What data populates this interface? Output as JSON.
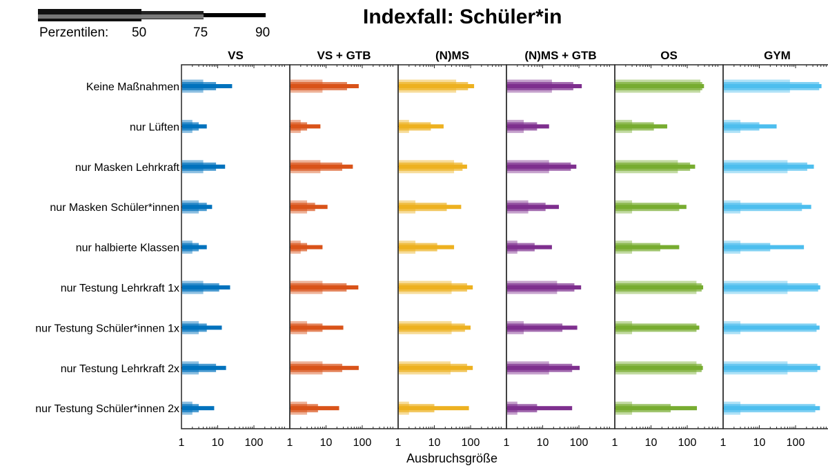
{
  "chart_data": {
    "type": "bar",
    "title": "Indexfall: Schüler*in",
    "xlabel": "Ausbruchsgröße",
    "xscale": "log",
    "xlim": [
      1,
      700
    ],
    "xticks": [
      1,
      10,
      100
    ],
    "xticklabels": [
      "1",
      "10",
      "100"
    ],
    "grid": false,
    "legend": {
      "placement": "top-left",
      "label": "Perzentilen:",
      "percentiles": [
        "50",
        "75",
        "90"
      ]
    },
    "categories": [
      "Keine Maßnahmen",
      "nur Lüften",
      "nur Masken Lehrkraft",
      "nur Masken Schüler*innen",
      "nur halbierte Klassen",
      "nur Testung Lehrkraft 1x",
      "nur Testung Schüler*innen 1x",
      "nur Testung Lehrkraft 2x",
      "nur Testung Schüler*innen 2x"
    ],
    "series": [
      {
        "name": "VS",
        "color": "#0072BD",
        "p50": [
          4,
          2,
          4,
          3,
          2,
          4,
          3,
          3,
          2
        ],
        "p75": [
          9,
          3,
          9,
          5,
          3,
          11,
          5,
          9,
          3
        ],
        "p90": [
          25,
          5,
          16,
          7,
          5,
          22,
          13,
          17,
          8
        ]
      },
      {
        "name": "VS + GTB",
        "color": "#D95319",
        "p50": [
          8,
          2,
          7,
          3,
          2,
          8,
          3,
          8,
          3
        ],
        "p75": [
          38,
          3,
          28,
          5,
          3,
          37,
          8,
          28,
          6
        ],
        "p90": [
          80,
          7,
          55,
          11,
          8,
          78,
          30,
          80,
          23
        ]
      },
      {
        "name": "(N)MS",
        "color": "#EDB120",
        "p50": [
          40,
          2,
          35,
          3,
          3,
          30,
          30,
          28,
          2
        ],
        "p75": [
          85,
          8,
          60,
          22,
          12,
          80,
          70,
          80,
          10
        ],
        "p90": [
          125,
          18,
          80,
          55,
          35,
          115,
          100,
          115,
          90
        ]
      },
      {
        "name": "(N)MS + GTB",
        "color": "#7E2F8E",
        "p50": [
          18,
          3,
          15,
          4,
          2,
          25,
          3,
          15,
          2
        ],
        "p75": [
          70,
          7,
          60,
          12,
          6,
          75,
          35,
          65,
          7
        ],
        "p90": [
          120,
          15,
          85,
          28,
          18,
          115,
          90,
          105,
          65
        ]
      },
      {
        "name": "OS",
        "color": "#77AC30",
        "p50": [
          230,
          3,
          55,
          3,
          3,
          180,
          3,
          180,
          3
        ],
        "p75": [
          260,
          12,
          120,
          60,
          18,
          250,
          180,
          250,
          35
        ],
        "p90": [
          290,
          28,
          165,
          95,
          60,
          275,
          215,
          270,
          185
        ]
      },
      {
        "name": "GYM",
        "color": "#4DBEEE",
        "p50": [
          70,
          3,
          60,
          3,
          3,
          60,
          3,
          60,
          3
        ],
        "p75": [
          450,
          10,
          210,
          150,
          20,
          420,
          380,
          400,
          350
        ],
        "p90": [
          520,
          30,
          320,
          270,
          170,
          480,
          460,
          480,
          470
        ]
      }
    ]
  }
}
